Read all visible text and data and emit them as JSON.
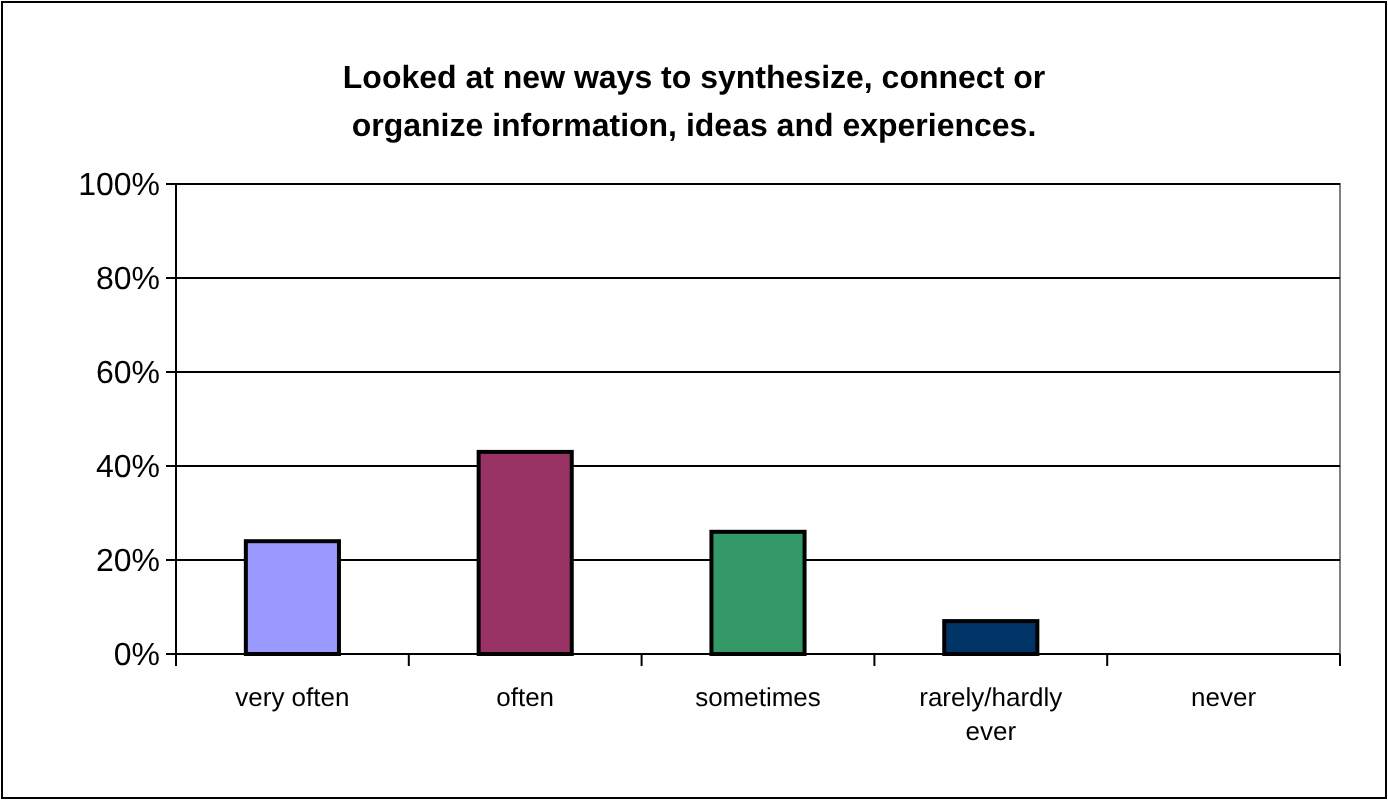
{
  "chart_data": {
    "type": "bar",
    "title": "Looked at new ways to synthesize, connect or organize information, ideas and experiences.",
    "categories": [
      "very often",
      "often",
      "sometimes",
      "rarely/hardly ever",
      "never"
    ],
    "values": [
      24,
      43,
      26,
      7,
      0
    ],
    "colors": [
      "#9999ff",
      "#993366",
      "#339966",
      "#003366",
      "#ffffff"
    ],
    "ylim": [
      0,
      100
    ],
    "yticks": [
      {
        "value": 0,
        "label": "0%"
      },
      {
        "value": 20,
        "label": "20%"
      },
      {
        "value": 40,
        "label": "40%"
      },
      {
        "value": 60,
        "label": "60%"
      },
      {
        "value": 80,
        "label": "80%"
      },
      {
        "value": 100,
        "label": "100%"
      }
    ],
    "grid": "y"
  }
}
